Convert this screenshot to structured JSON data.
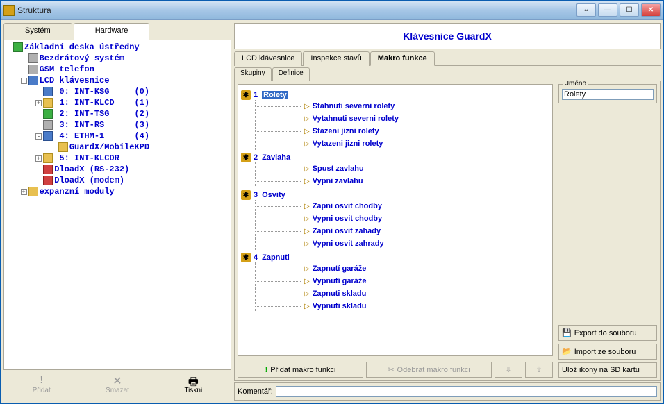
{
  "window": {
    "title": "Struktura"
  },
  "left": {
    "tabs": [
      {
        "label": "Systém",
        "active": false
      },
      {
        "label": "Hardware",
        "active": true
      }
    ],
    "buttons": {
      "add": "Přidat",
      "delete": "Smazat",
      "print": "Tiskni"
    },
    "tree": [
      {
        "indent": 0,
        "icon": "ic-green",
        "text": "Základní deska ústředny",
        "exp": ""
      },
      {
        "indent": 1,
        "icon": "ic-gray",
        "text": "Bezdrátový systém",
        "exp": ""
      },
      {
        "indent": 1,
        "icon": "ic-gray",
        "text": "GSM telefon",
        "exp": "",
        "prefix": "GSM "
      },
      {
        "indent": 1,
        "icon": "ic-blue",
        "text": "LCD klávesnice",
        "exp": "-"
      },
      {
        "indent": 2,
        "icon": "ic-blue",
        "text": " 0: INT-KSG     (0)",
        "exp": ""
      },
      {
        "indent": 2,
        "icon": "ic-yel",
        "text": " 1: INT-KLCD    (1)",
        "exp": "+"
      },
      {
        "indent": 2,
        "icon": "ic-green",
        "text": " 2: INT-TSG     (2)",
        "exp": ""
      },
      {
        "indent": 2,
        "icon": "ic-gray",
        "text": " 3: INT-RS      (3)",
        "exp": ""
      },
      {
        "indent": 2,
        "icon": "ic-blue",
        "text": " 4: ETHM-1      (4)",
        "exp": "-"
      },
      {
        "indent": 3,
        "icon": "ic-yel",
        "text": "GuardX/MobileKPD",
        "exp": ""
      },
      {
        "indent": 2,
        "icon": "ic-yel",
        "text": " 5: INT-KLCDR",
        "exp": "+"
      },
      {
        "indent": 2,
        "icon": "ic-red",
        "text": "DloadX (RS-232)",
        "exp": ""
      },
      {
        "indent": 2,
        "icon": "ic-red",
        "text": "DloadX (modem)",
        "exp": ""
      },
      {
        "indent": 1,
        "icon": "ic-yel",
        "text": "expanzní moduly",
        "exp": "+"
      }
    ]
  },
  "right": {
    "title": "Klávesnice GuardX",
    "tabs": [
      {
        "label": "LCD klávesnice",
        "active": false
      },
      {
        "label": "Inspekce stavů",
        "active": false
      },
      {
        "label": "Makro funkce",
        "active": true
      }
    ],
    "subtabs": [
      {
        "label": "Skupiny",
        "active": true
      },
      {
        "label": "Definice",
        "active": false
      }
    ],
    "name_label": "Jméno",
    "name_value": "Rolety",
    "export_btn": "Export do souboru",
    "import_btn": "Import ze souboru",
    "sd_btn": "Ulož ikony na SD kartu",
    "add_macro": "Přidat makro funkci",
    "del_macro": "Odebrat makro funkci",
    "comment_label": "Komentář:",
    "groups": [
      {
        "num": "1",
        "name": "Rolety",
        "selected": true,
        "items": [
          "Stahnuti severni rolety",
          "Vytahnuti severni rolety",
          "Stazeni jizni rolety",
          "Vytazeni jizni rolety"
        ]
      },
      {
        "num": "2",
        "name": "Zavlaha",
        "selected": false,
        "items": [
          "Spust zavlahu",
          "Vypni zavlahu"
        ]
      },
      {
        "num": "3",
        "name": "Osvity",
        "selected": false,
        "items": [
          "Zapni osvit chodby",
          "Vypni osvit chodby",
          "Zapni osvit zahady",
          "Vypni osvit zahrady"
        ]
      },
      {
        "num": "4",
        "name": "Zapnuti",
        "selected": false,
        "items": [
          "Zapnutí garáže",
          "Vypnutí garáže",
          "Zapnuti skladu",
          "Vypnuti skladu"
        ]
      }
    ]
  }
}
